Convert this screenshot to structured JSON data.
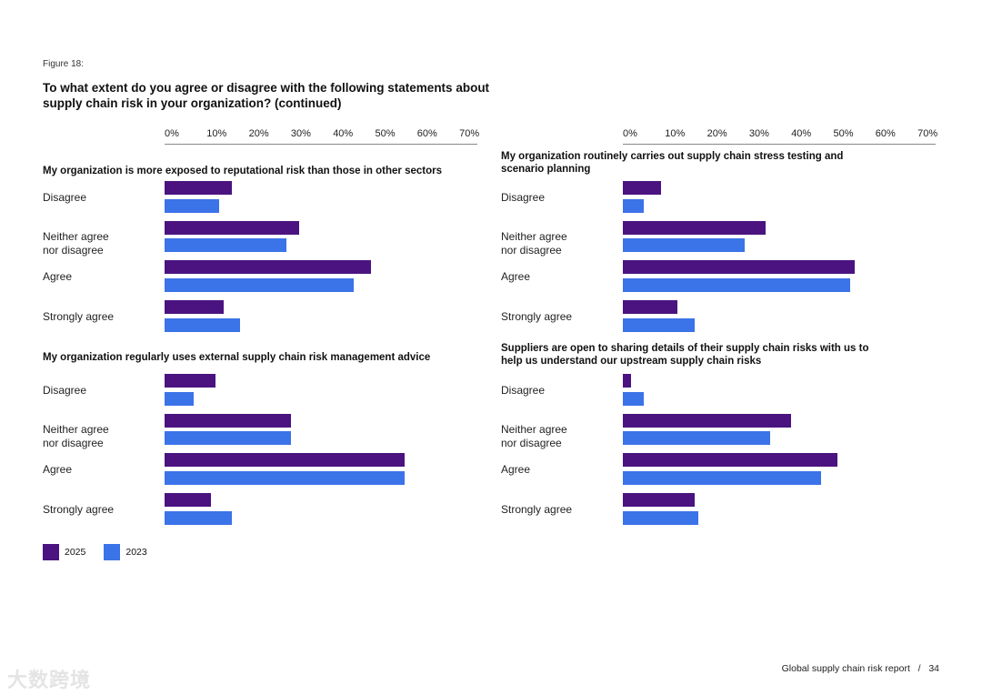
{
  "figure_label": "Figure 18:",
  "title": "To what extent do you agree or disagree with the following statements about supply chain risk in your organization? (continued)",
  "footer": {
    "report": "Global supply chain risk report",
    "separator": "/",
    "page": "34"
  },
  "watermark": "大数跨境",
  "colors": {
    "2025": "#4b1380",
    "2023": "#3b73e8"
  },
  "chart_data": [
    {
      "type": "bar",
      "orientation": "horizontal",
      "title": "My organization is more exposed to reputational risk than those in other sectors",
      "categories": [
        "Disagree",
        "Neither agree nor disagree",
        "Agree",
        "Strongly agree"
      ],
      "series": [
        {
          "name": "2025",
          "values": [
            16,
            32,
            49,
            14
          ]
        },
        {
          "name": "2023",
          "values": [
            13,
            29,
            45,
            18
          ]
        }
      ],
      "xlim": [
        0,
        70
      ],
      "xticks": [
        "0%",
        "10%",
        "20%",
        "30%",
        "40%",
        "50%",
        "60%",
        "70%"
      ],
      "legend": "bottom-left"
    },
    {
      "type": "bar",
      "orientation": "horizontal",
      "title": "My organization routinely carries out supply chain stress testing and scenario planning",
      "categories": [
        "Disagree",
        "Neither agree nor disagree",
        "Agree",
        "Strongly agree"
      ],
      "series": [
        {
          "name": "2025",
          "values": [
            9,
            34,
            55,
            13
          ]
        },
        {
          "name": "2023",
          "values": [
            5,
            29,
            54,
            17
          ]
        }
      ],
      "xlim": [
        0,
        70
      ],
      "xticks": [
        "0%",
        "10%",
        "20%",
        "30%",
        "40%",
        "50%",
        "60%",
        "70%"
      ]
    },
    {
      "type": "bar",
      "orientation": "horizontal",
      "title": "My organization regularly uses external supply chain risk management advice",
      "categories": [
        "Disagree",
        "Neither agree nor disagree",
        "Agree",
        "Strongly agree"
      ],
      "series": [
        {
          "name": "2025",
          "values": [
            12,
            30,
            57,
            11
          ]
        },
        {
          "name": "2023",
          "values": [
            7,
            30,
            57,
            16
          ]
        }
      ],
      "xlim": [
        0,
        70
      ]
    },
    {
      "type": "bar",
      "orientation": "horizontal",
      "title": "Suppliers are open to sharing details of their supply chain risks with us to help us understand our upstream supply chain risks",
      "categories": [
        "Disagree",
        "Neither agree nor disagree",
        "Agree",
        "Strongly agree"
      ],
      "series": [
        {
          "name": "2025",
          "values": [
            2,
            40,
            51,
            17
          ]
        },
        {
          "name": "2023",
          "values": [
            5,
            35,
            47,
            18
          ]
        }
      ],
      "xlim": [
        0,
        70
      ]
    }
  ],
  "category_lines": [
    [
      "Disagree"
    ],
    [
      "Neither agree",
      "nor disagree"
    ],
    [
      "Agree"
    ],
    [
      "Strongly agree"
    ]
  ],
  "legend": [
    {
      "label": "2025"
    },
    {
      "label": "2023"
    }
  ]
}
